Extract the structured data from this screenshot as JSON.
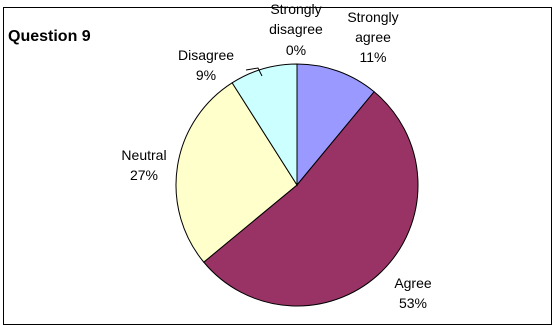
{
  "chart_data": {
    "type": "pie",
    "title": "Question 9",
    "slices": [
      {
        "label": "Strongly agree",
        "value": 11,
        "percent_label": "11%",
        "color": "#9999ff"
      },
      {
        "label": "Agree",
        "value": 53,
        "percent_label": "53%",
        "color": "#993366"
      },
      {
        "label": "Neutral",
        "value": 27,
        "percent_label": "27%",
        "color": "#ffffcc"
      },
      {
        "label": "Disagree",
        "value": 9,
        "percent_label": "9%",
        "color": "#ccffff"
      },
      {
        "label": "Strongly disagree",
        "value": 0,
        "percent_label": "0%",
        "color": "#ffffff"
      }
    ],
    "start": "top",
    "direction": "clockwise"
  }
}
